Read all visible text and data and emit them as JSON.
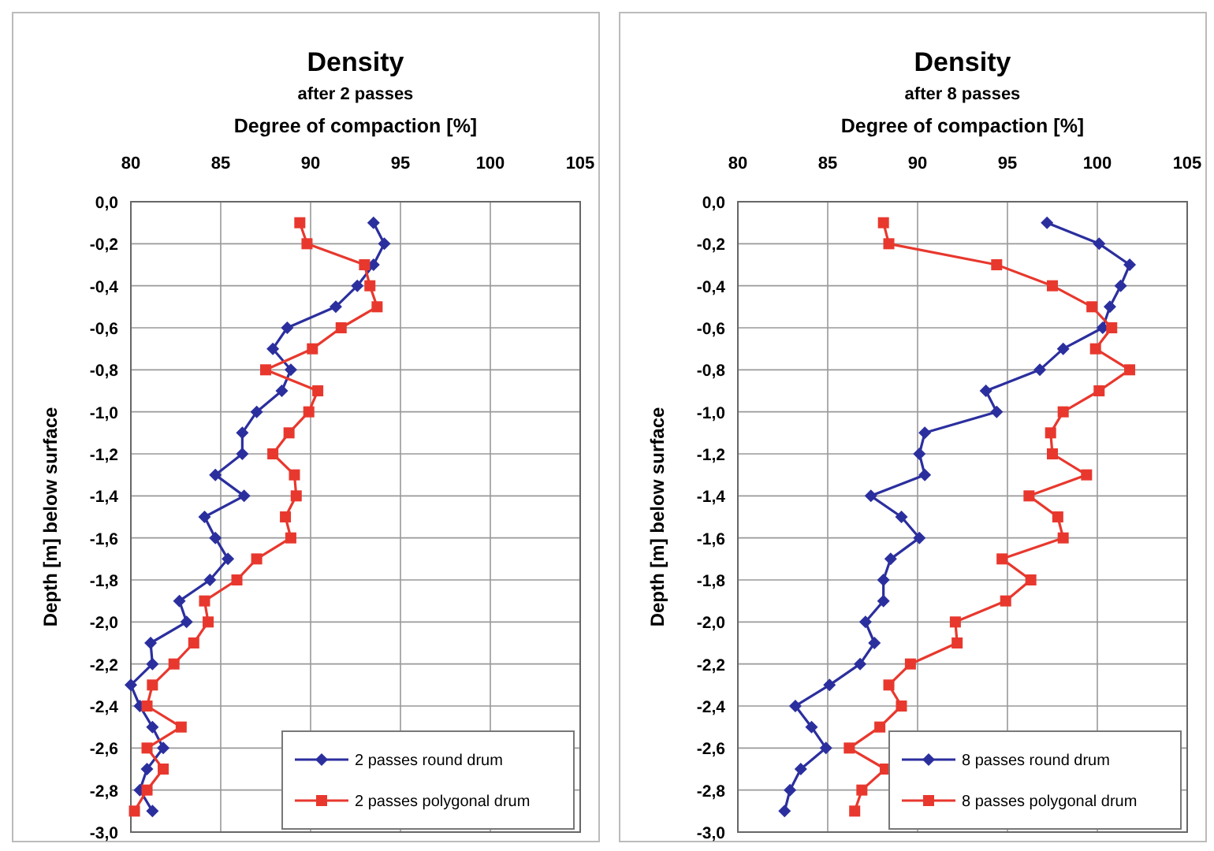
{
  "chart_data": [
    {
      "type": "line",
      "title": "Density",
      "subtitle": "after 2 passes",
      "xlabel": "Degree of compaction [%]",
      "ylabel": "Depth [m] below surface",
      "xlim": [
        80,
        105
      ],
      "xticks": [
        80,
        85,
        90,
        95,
        100,
        105
      ],
      "ylim": [
        -3,
        0
      ],
      "yticks": [
        {
          "value": 0,
          "label": "0,0"
        },
        {
          "value": -0.2,
          "label": "-0,2"
        },
        {
          "value": -0.4,
          "label": "-0,4"
        },
        {
          "value": -0.6,
          "label": "-0,6"
        },
        {
          "value": -0.8,
          "label": "-0,8"
        },
        {
          "value": -1.0,
          "label": "-1,0"
        },
        {
          "value": -1.2,
          "label": "-1,2"
        },
        {
          "value": -1.4,
          "label": "-1,4"
        },
        {
          "value": -1.6,
          "label": "-1,6"
        },
        {
          "value": -1.8,
          "label": "-1,8"
        },
        {
          "value": -2.0,
          "label": "-2,0"
        },
        {
          "value": -2.2,
          "label": "-2,2"
        },
        {
          "value": -2.4,
          "label": "-2,4"
        },
        {
          "value": -2.6,
          "label": "-2,6"
        },
        {
          "value": -2.8,
          "label": "-2,8"
        },
        {
          "value": -3.0,
          "label": "-3,0"
        }
      ],
      "grid": true,
      "legend": "bottom right",
      "line_style": "solid",
      "series": [
        {
          "name": "2 passes round drum",
          "color": "#2b2f9e",
          "marker": "diamond",
          "x": [
            93.5,
            94.1,
            93.5,
            92.6,
            91.4,
            88.7,
            87.9,
            88.9,
            88.4,
            87.0,
            86.2,
            86.2,
            84.7,
            86.3,
            84.1,
            84.7,
            85.4,
            84.4,
            82.7,
            83.1,
            81.1,
            81.2,
            80.0,
            80.5,
            81.2,
            81.8,
            80.9,
            80.5,
            81.2
          ],
          "values": [
            -0.1,
            -0.2,
            -0.3,
            -0.4,
            -0.5,
            -0.6,
            -0.7,
            -0.8,
            -0.9,
            -1.0,
            -1.1,
            -1.2,
            -1.3,
            -1.4,
            -1.5,
            -1.6,
            -1.7,
            -1.8,
            -1.9,
            -2.0,
            -2.1,
            -2.2,
            -2.3,
            -2.4,
            -2.5,
            -2.6,
            -2.7,
            -2.8,
            -2.9
          ]
        },
        {
          "name": "2 passes polygonal drum",
          "color": "#e8382e",
          "marker": "square",
          "x": [
            89.4,
            89.8,
            93.0,
            93.3,
            93.7,
            91.7,
            90.1,
            87.5,
            90.4,
            89.9,
            88.8,
            87.9,
            89.1,
            89.2,
            88.6,
            88.9,
            87.0,
            85.9,
            84.1,
            84.3,
            83.5,
            82.4,
            81.2,
            80.9,
            82.8,
            80.9,
            81.8,
            80.9,
            80.2
          ],
          "values": [
            -0.1,
            -0.2,
            -0.3,
            -0.4,
            -0.5,
            -0.6,
            -0.7,
            -0.8,
            -0.9,
            -1.0,
            -1.1,
            -1.2,
            -1.3,
            -1.4,
            -1.5,
            -1.6,
            -1.7,
            -1.8,
            -1.9,
            -2.0,
            -2.1,
            -2.2,
            -2.3,
            -2.4,
            -2.5,
            -2.6,
            -2.7,
            -2.8,
            -2.9
          ]
        }
      ]
    },
    {
      "type": "line",
      "title": "Density",
      "subtitle": "after 8 passes",
      "xlabel": "Degree of compaction [%]",
      "ylabel": "Depth [m] below surface",
      "xlim": [
        80,
        105
      ],
      "xticks": [
        80,
        85,
        90,
        95,
        100,
        105
      ],
      "ylim": [
        -3,
        0
      ],
      "yticks": [
        {
          "value": 0,
          "label": "0,0"
        },
        {
          "value": -0.2,
          "label": "-0,2"
        },
        {
          "value": -0.4,
          "label": "-0,4"
        },
        {
          "value": -0.6,
          "label": "-0,6"
        },
        {
          "value": -0.8,
          "label": "-0,8"
        },
        {
          "value": -1.0,
          "label": "-1,0"
        },
        {
          "value": -1.2,
          "label": "-1,2"
        },
        {
          "value": -1.4,
          "label": "-1,4"
        },
        {
          "value": -1.6,
          "label": "-1,6"
        },
        {
          "value": -1.8,
          "label": "-1,8"
        },
        {
          "value": -2.0,
          "label": "-2,0"
        },
        {
          "value": -2.2,
          "label": "-2,2"
        },
        {
          "value": -2.4,
          "label": "-2,4"
        },
        {
          "value": -2.6,
          "label": "-2,6"
        },
        {
          "value": -2.8,
          "label": "-2,8"
        },
        {
          "value": -3.0,
          "label": "-3,0"
        }
      ],
      "grid": true,
      "legend": "bottom right",
      "line_style": "solid",
      "series": [
        {
          "name": "8 passes round drum",
          "color": "#2b2f9e",
          "marker": "diamond",
          "x": [
            97.2,
            100.1,
            101.8,
            101.3,
            100.7,
            100.3,
            98.1,
            96.8,
            93.8,
            94.4,
            90.4,
            90.1,
            90.4,
            87.4,
            89.1,
            90.1,
            88.5,
            88.1,
            88.1,
            87.1,
            87.6,
            86.8,
            85.1,
            83.2,
            84.1,
            84.9,
            83.5,
            82.9,
            82.6
          ],
          "values": [
            -0.1,
            -0.2,
            -0.3,
            -0.4,
            -0.5,
            -0.6,
            -0.7,
            -0.8,
            -0.9,
            -1.0,
            -1.1,
            -1.2,
            -1.3,
            -1.4,
            -1.5,
            -1.6,
            -1.7,
            -1.8,
            -1.9,
            -2.0,
            -2.1,
            -2.2,
            -2.3,
            -2.4,
            -2.5,
            -2.6,
            -2.7,
            -2.8,
            -2.9
          ]
        },
        {
          "name": "8 passes polygonal drum",
          "color": "#e8382e",
          "marker": "square",
          "x": [
            88.1,
            88.4,
            94.4,
            97.5,
            99.7,
            100.8,
            99.9,
            101.8,
            100.1,
            98.1,
            97.4,
            97.5,
            99.4,
            96.2,
            97.8,
            98.1,
            94.7,
            96.3,
            94.9,
            92.1,
            92.2,
            89.6,
            88.4,
            89.1,
            87.9,
            86.2,
            88.2,
            86.9,
            86.5
          ],
          "values": [
            -0.1,
            -0.2,
            -0.3,
            -0.4,
            -0.5,
            -0.6,
            -0.7,
            -0.8,
            -0.9,
            -1.0,
            -1.1,
            -1.2,
            -1.3,
            -1.4,
            -1.5,
            -1.6,
            -1.7,
            -1.8,
            -1.9,
            -2.0,
            -2.1,
            -2.2,
            -2.3,
            -2.4,
            -2.5,
            -2.6,
            -2.7,
            -2.8,
            -2.9
          ]
        }
      ]
    }
  ]
}
